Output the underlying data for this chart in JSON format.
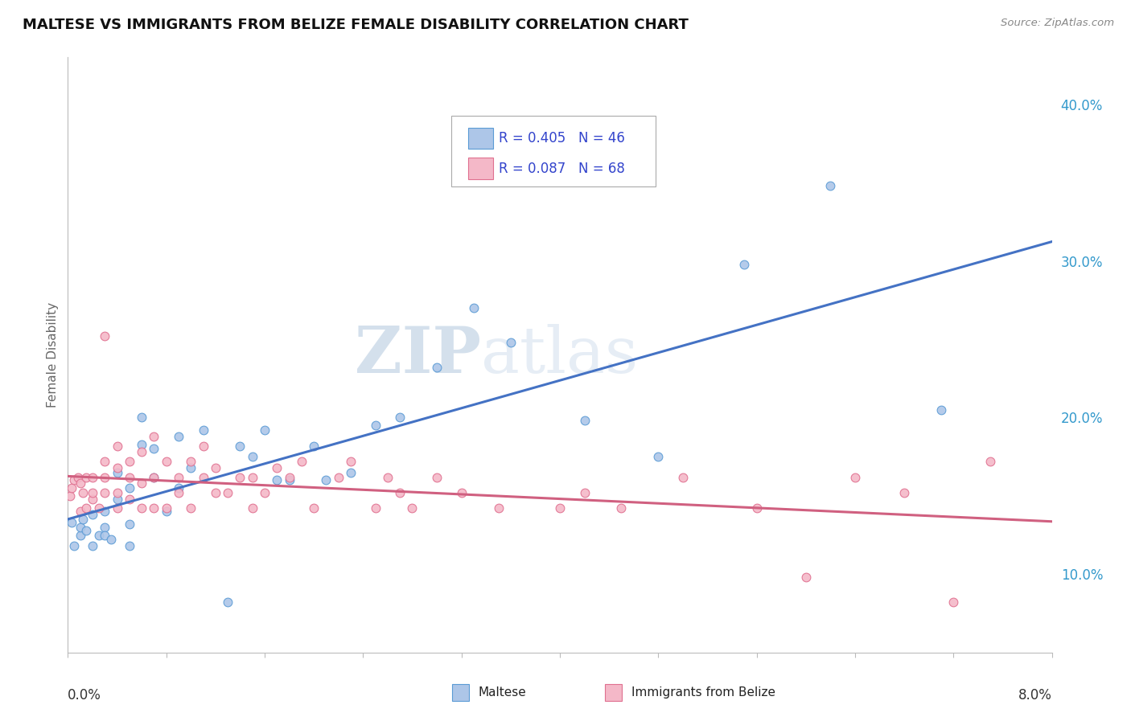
{
  "title": "MALTESE VS IMMIGRANTS FROM BELIZE FEMALE DISABILITY CORRELATION CHART",
  "source": "Source: ZipAtlas.com",
  "ylabel": "Female Disability",
  "xmin": 0.0,
  "xmax": 0.08,
  "ymin": 0.05,
  "ymax": 0.43,
  "yticks": [
    0.1,
    0.2,
    0.3,
    0.4
  ],
  "ytick_labels": [
    "10.0%",
    "20.0%",
    "30.0%",
    "40.0%"
  ],
  "series1_label": "Maltese",
  "series1_R": "0.405",
  "series1_N": "46",
  "series1_color": "#adc6e8",
  "series1_edge_color": "#5b9bd5",
  "series1_line_color": "#4472c4",
  "series2_label": "Immigrants from Belize",
  "series2_R": "0.087",
  "series2_N": "68",
  "series2_color": "#f4b8c8",
  "series2_edge_color": "#e07090",
  "series2_line_color": "#d06080",
  "legend_text_color": "#3344cc",
  "watermark_color": "#c8d8ea",
  "background_color": "#ffffff",
  "grid_color": "#cccccc",
  "maltese_x": [
    0.0003,
    0.0005,
    0.001,
    0.001,
    0.0012,
    0.0015,
    0.002,
    0.002,
    0.0025,
    0.003,
    0.003,
    0.003,
    0.0035,
    0.004,
    0.004,
    0.005,
    0.005,
    0.005,
    0.006,
    0.006,
    0.007,
    0.007,
    0.008,
    0.009,
    0.009,
    0.01,
    0.011,
    0.013,
    0.014,
    0.015,
    0.016,
    0.017,
    0.018,
    0.02,
    0.021,
    0.023,
    0.025,
    0.027,
    0.03,
    0.033,
    0.036,
    0.042,
    0.048,
    0.055,
    0.062,
    0.071
  ],
  "maltese_y": [
    0.133,
    0.118,
    0.125,
    0.13,
    0.135,
    0.128,
    0.118,
    0.138,
    0.125,
    0.13,
    0.14,
    0.125,
    0.122,
    0.148,
    0.165,
    0.118,
    0.132,
    0.155,
    0.2,
    0.183,
    0.162,
    0.18,
    0.14,
    0.155,
    0.188,
    0.168,
    0.192,
    0.082,
    0.182,
    0.175,
    0.192,
    0.16,
    0.16,
    0.182,
    0.16,
    0.165,
    0.195,
    0.2,
    0.232,
    0.27,
    0.248,
    0.198,
    0.175,
    0.298,
    0.348,
    0.205
  ],
  "belize_x": [
    0.0002,
    0.0003,
    0.0005,
    0.0008,
    0.001,
    0.001,
    0.0012,
    0.0015,
    0.0015,
    0.002,
    0.002,
    0.002,
    0.0025,
    0.003,
    0.003,
    0.003,
    0.003,
    0.004,
    0.004,
    0.004,
    0.004,
    0.005,
    0.005,
    0.005,
    0.006,
    0.006,
    0.006,
    0.007,
    0.007,
    0.007,
    0.008,
    0.008,
    0.009,
    0.009,
    0.01,
    0.01,
    0.011,
    0.011,
    0.012,
    0.012,
    0.013,
    0.014,
    0.015,
    0.015,
    0.016,
    0.017,
    0.018,
    0.019,
    0.02,
    0.022,
    0.023,
    0.025,
    0.026,
    0.027,
    0.028,
    0.03,
    0.032,
    0.035,
    0.04,
    0.042,
    0.045,
    0.05,
    0.056,
    0.06,
    0.064,
    0.068,
    0.072,
    0.075
  ],
  "belize_y": [
    0.15,
    0.155,
    0.16,
    0.162,
    0.14,
    0.158,
    0.152,
    0.142,
    0.162,
    0.148,
    0.152,
    0.162,
    0.142,
    0.152,
    0.162,
    0.172,
    0.252,
    0.142,
    0.152,
    0.168,
    0.182,
    0.148,
    0.162,
    0.172,
    0.142,
    0.158,
    0.178,
    0.142,
    0.162,
    0.188,
    0.142,
    0.172,
    0.152,
    0.162,
    0.142,
    0.172,
    0.162,
    0.182,
    0.152,
    0.168,
    0.152,
    0.162,
    0.142,
    0.162,
    0.152,
    0.168,
    0.162,
    0.172,
    0.142,
    0.162,
    0.172,
    0.142,
    0.162,
    0.152,
    0.142,
    0.162,
    0.152,
    0.142,
    0.142,
    0.152,
    0.142,
    0.162,
    0.142,
    0.098,
    0.162,
    0.152,
    0.082,
    0.172
  ]
}
